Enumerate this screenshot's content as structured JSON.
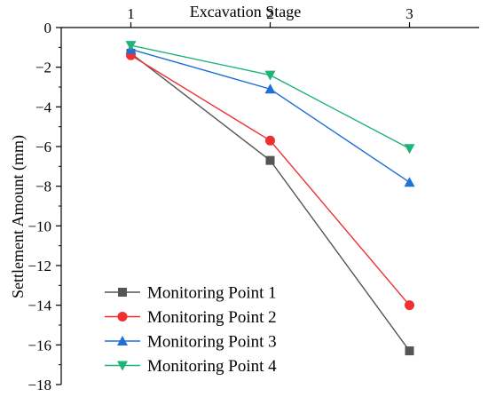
{
  "chart_data": {
    "type": "line",
    "title": "",
    "xlabel": "Excavation Stage",
    "ylabel": "Settlement Amount (mm)",
    "x": [
      1,
      2,
      3
    ],
    "x_tick_labels": [
      "1",
      "2",
      "3"
    ],
    "xlim": [
      0.5,
      3.5
    ],
    "ylim": [
      -18,
      0
    ],
    "y_ticks": [
      0,
      -2,
      -4,
      -6,
      -8,
      -10,
      -12,
      -14,
      -16,
      -18
    ],
    "y_tick_labels": [
      "0",
      "−2",
      "−4",
      "−6",
      "−8",
      "−10",
      "−12",
      "−14",
      "−16",
      "−18"
    ],
    "x_axis_position": "top",
    "grid": false,
    "legend_position": "bottom-left",
    "series": [
      {
        "name": "Monitoring Point 1",
        "values": [
          -1.3,
          -6.7,
          -16.3
        ],
        "color": "#555555",
        "marker": "square"
      },
      {
        "name": "Monitoring Point 2",
        "values": [
          -1.4,
          -5.7,
          -14.0
        ],
        "color": "#f0302f",
        "marker": "circle"
      },
      {
        "name": "Monitoring Point 3",
        "values": [
          -1.1,
          -3.1,
          -7.8
        ],
        "color": "#1f6fd6",
        "marker": "triangle-up"
      },
      {
        "name": "Monitoring Point 4",
        "values": [
          -0.9,
          -2.4,
          -6.1
        ],
        "color": "#1fb37a",
        "marker": "triangle-down"
      }
    ]
  }
}
